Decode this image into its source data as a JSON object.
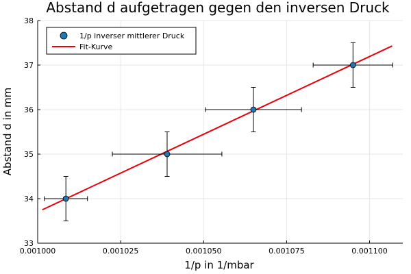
{
  "chart_data": {
    "type": "scatter",
    "title": "Abstand d aufgetragen gegen den inversen Druck",
    "xlabel": "1/p in 1/mbar",
    "ylabel": "Abstand d in mm",
    "xlim": [
      0.001,
      0.00111
    ],
    "ylim": [
      33,
      38
    ],
    "x_ticks": [
      0.001,
      0.001025,
      0.00105,
      0.001075,
      0.0011
    ],
    "x_tick_labels": [
      "0.001000",
      "0.001025",
      "0.001050",
      "0.001075",
      "0.001100"
    ],
    "y_ticks": [
      33,
      34,
      35,
      36,
      37,
      38
    ],
    "y_tick_labels": [
      "33",
      "34",
      "35",
      "36",
      "37",
      "38"
    ],
    "grid": true,
    "legend_position": "top-left",
    "series": [
      {
        "name": "1/p inverser mittlerer Druck",
        "type": "scatter",
        "color": "#1f77b4",
        "points": [
          {
            "x": 0.0010085,
            "y": 34,
            "xerr": 6.5e-06,
            "yerr": 0.5
          },
          {
            "x": 0.001039,
            "y": 35,
            "xerr": 1.65e-05,
            "yerr": 0.5
          },
          {
            "x": 0.001065,
            "y": 36,
            "xerr": 1.45e-05,
            "yerr": 0.5
          },
          {
            "x": 0.001095,
            "y": 37,
            "xerr": 1.2e-05,
            "yerr": 0.5
          }
        ]
      },
      {
        "name": "Fit-Kurve",
        "type": "line",
        "color": "#e8000b",
        "points": [
          {
            "x": 0.0010014,
            "y": 33.75
          },
          {
            "x": 0.0011068,
            "y": 37.43
          }
        ]
      }
    ]
  }
}
